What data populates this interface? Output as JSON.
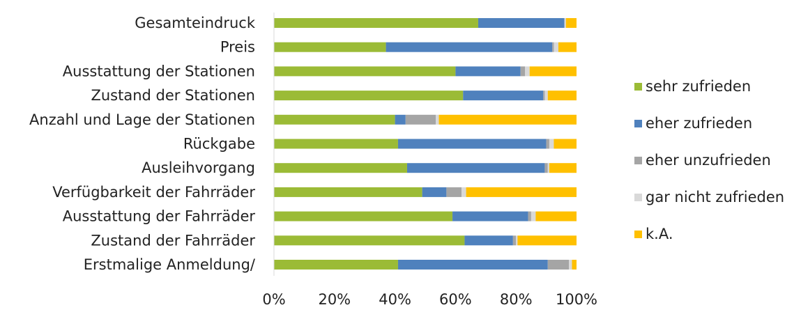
{
  "chart_data": {
    "type": "bar",
    "orientation": "horizontal",
    "stacked": "percent",
    "categories": [
      "Gesamteindruck",
      "Preis",
      "Ausstattung der Stationen",
      "Zustand der Stationen",
      "Anzahl und Lage der Stationen",
      "Rückgabe",
      "Ausleihvorgang",
      "Verfügbarkeit der Fahrräder",
      "Ausstattung der Fahrräder",
      "Zustand der Fahrräder",
      "Erstmalige Anmeldung/"
    ],
    "series": [
      {
        "name": "sehr zufrieden",
        "color": "#9BBB36",
        "values": [
          67.5,
          37,
          60,
          62.5,
          40,
          41,
          44,
          49,
          59,
          63,
          41
        ]
      },
      {
        "name": "eher zufrieden",
        "color": "#4F81BD",
        "values": [
          28.5,
          55,
          21.5,
          26.5,
          3.5,
          49,
          45.5,
          8,
          25,
          16,
          49.5
        ]
      },
      {
        "name": "eher unzufrieden",
        "color": "#A5A5A5",
        "values": [
          0,
          0.5,
          1.5,
          0.5,
          10,
          1,
          1,
          5,
          1,
          1,
          7
        ]
      },
      {
        "name": "gar nicht zufrieden",
        "color": "#D9D9D9",
        "values": [
          0.5,
          1.5,
          1.5,
          1,
          1,
          1.5,
          0.5,
          1.5,
          1.5,
          0.5,
          1
        ]
      },
      {
        "name": "k.A.",
        "color": "#FFC000",
        "values": [
          3.5,
          6,
          15.5,
          9.5,
          45.5,
          7.5,
          9,
          36.5,
          13.5,
          19.5,
          1.5
        ]
      }
    ],
    "xlim": [
      0,
      100
    ],
    "xticks": [
      "0%",
      "20%",
      "40%",
      "60%",
      "80%",
      "100%"
    ],
    "title": "",
    "xlabel": "",
    "ylabel": "",
    "grid": false,
    "legend_position": "right"
  }
}
